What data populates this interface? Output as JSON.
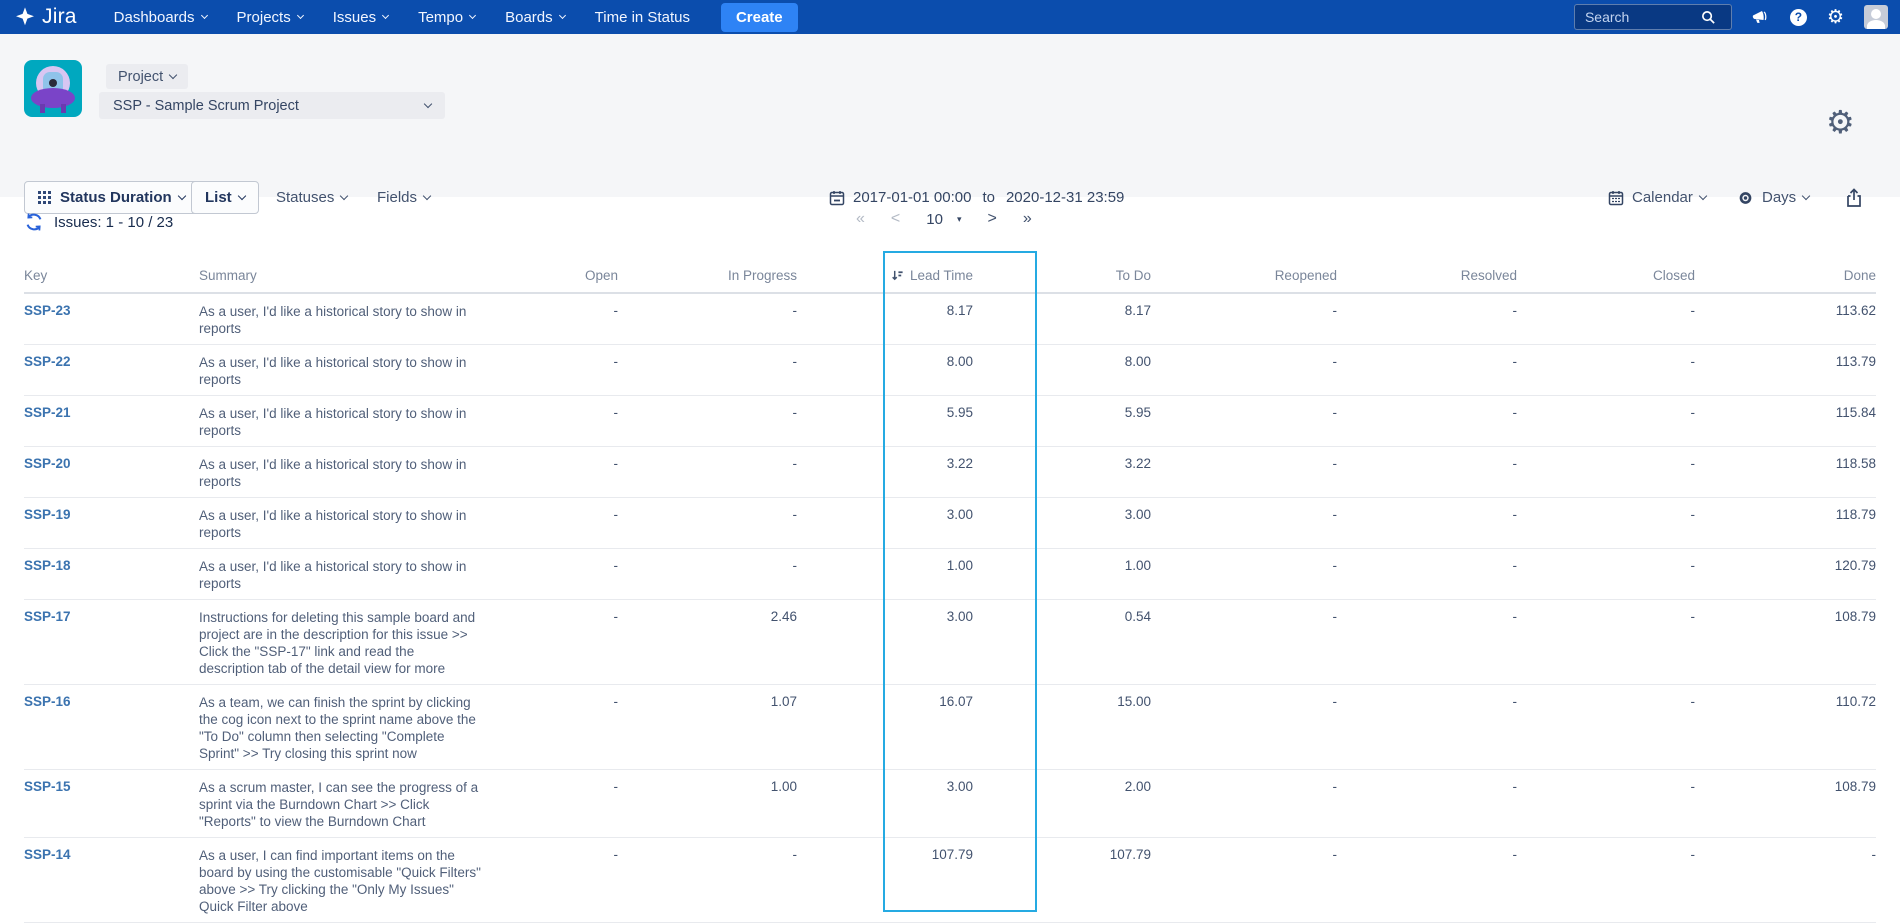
{
  "nav": {
    "logo_text": "Jira",
    "items": [
      {
        "label": "Dashboards",
        "dropdown": true
      },
      {
        "label": "Projects",
        "dropdown": true
      },
      {
        "label": "Issues",
        "dropdown": true
      },
      {
        "label": "Tempo",
        "dropdown": true
      },
      {
        "label": "Boards",
        "dropdown": true
      },
      {
        "label": "Time in Status",
        "dropdown": false
      }
    ],
    "create_label": "Create",
    "search_placeholder": "Search",
    "help_glyph": "?",
    "icons": [
      "megaphone-icon",
      "help-icon",
      "gear-icon",
      "user-avatar"
    ]
  },
  "header": {
    "scope_button_label": "Project",
    "project_select_value": "SSP - Sample Scrum Project"
  },
  "toolbar": {
    "report_type_label": "Status Duration",
    "view_type_label": "List",
    "statuses_label": "Statuses",
    "fields_label": "Fields",
    "date_from": "2017-01-01 00:00",
    "date_separator": "to",
    "date_to": "2020-12-31 23:59",
    "calendar_label": "Calendar",
    "unit_label": "Days"
  },
  "results": {
    "issues_count_label": "Issues: 1 - 10 / 23",
    "pager": {
      "first": "«",
      "prev": "<",
      "page_size": "10",
      "dropdown_glyph": "▾",
      "next": ">",
      "last": "»"
    }
  },
  "table": {
    "columns": [
      "Key",
      "Summary",
      "Open",
      "In Progress",
      "Lead Time",
      "To Do",
      "Reopened",
      "Resolved",
      "Closed",
      "Done"
    ],
    "highlighted_column": "Lead Time",
    "rows": [
      {
        "key": "SSP-23",
        "summary": "As a user, I'd like a historical story to show in reports",
        "open": "-",
        "in_progress": "-",
        "lead_time": "8.17",
        "to_do": "8.17",
        "reopened": "-",
        "resolved": "-",
        "closed": "-",
        "done": "113.62"
      },
      {
        "key": "SSP-22",
        "summary": "As a user, I'd like a historical story to show in reports",
        "open": "-",
        "in_progress": "-",
        "lead_time": "8.00",
        "to_do": "8.00",
        "reopened": "-",
        "resolved": "-",
        "closed": "-",
        "done": "113.79"
      },
      {
        "key": "SSP-21",
        "summary": "As a user, I'd like a historical story to show in reports",
        "open": "-",
        "in_progress": "-",
        "lead_time": "5.95",
        "to_do": "5.95",
        "reopened": "-",
        "resolved": "-",
        "closed": "-",
        "done": "115.84"
      },
      {
        "key": "SSP-20",
        "summary": "As a user, I'd like a historical story to show in reports",
        "open": "-",
        "in_progress": "-",
        "lead_time": "3.22",
        "to_do": "3.22",
        "reopened": "-",
        "resolved": "-",
        "closed": "-",
        "done": "118.58"
      },
      {
        "key": "SSP-19",
        "summary": "As a user, I'd like a historical story to show in reports",
        "open": "-",
        "in_progress": "-",
        "lead_time": "3.00",
        "to_do": "3.00",
        "reopened": "-",
        "resolved": "-",
        "closed": "-",
        "done": "118.79"
      },
      {
        "key": "SSP-18",
        "summary": "As a user, I'd like a historical story to show in reports",
        "open": "-",
        "in_progress": "-",
        "lead_time": "1.00",
        "to_do": "1.00",
        "reopened": "-",
        "resolved": "-",
        "closed": "-",
        "done": "120.79"
      },
      {
        "key": "SSP-17",
        "summary": "Instructions for deleting this sample board and project are in the description for this issue >> Click the \"SSP-17\" link and read the description tab of the detail view for more",
        "open": "-",
        "in_progress": "2.46",
        "lead_time": "3.00",
        "to_do": "0.54",
        "reopened": "-",
        "resolved": "-",
        "closed": "-",
        "done": "108.79"
      },
      {
        "key": "SSP-16",
        "summary": "As a team, we can finish the sprint by clicking the cog icon next to the sprint name above the \"To Do\" column then selecting \"Complete Sprint\" >> Try closing this sprint now",
        "open": "-",
        "in_progress": "1.07",
        "lead_time": "16.07",
        "to_do": "15.00",
        "reopened": "-",
        "resolved": "-",
        "closed": "-",
        "done": "110.72"
      },
      {
        "key": "SSP-15",
        "summary": "As a scrum master, I can see the progress of a sprint via the Burndown Chart >> Click \"Reports\" to view the Burndown Chart",
        "open": "-",
        "in_progress": "1.00",
        "lead_time": "3.00",
        "to_do": "2.00",
        "reopened": "-",
        "resolved": "-",
        "closed": "-",
        "done": "108.79"
      },
      {
        "key": "SSP-14",
        "summary": "As a user, I can find important items on the board by using the customisable \"Quick Filters\" above >> Try clicking the \"Only My Issues\" Quick Filter above",
        "open": "-",
        "in_progress": "-",
        "lead_time": "107.79",
        "to_do": "107.79",
        "reopened": "-",
        "resolved": "-",
        "closed": "-",
        "done": "-"
      }
    ]
  },
  "colors": {
    "nav_bg": "#0b4dad",
    "create_btn": "#2e83f5",
    "highlight_border": "#25aae2",
    "link_blue": "#3b73af",
    "refresh_icon": "#2962d9"
  }
}
